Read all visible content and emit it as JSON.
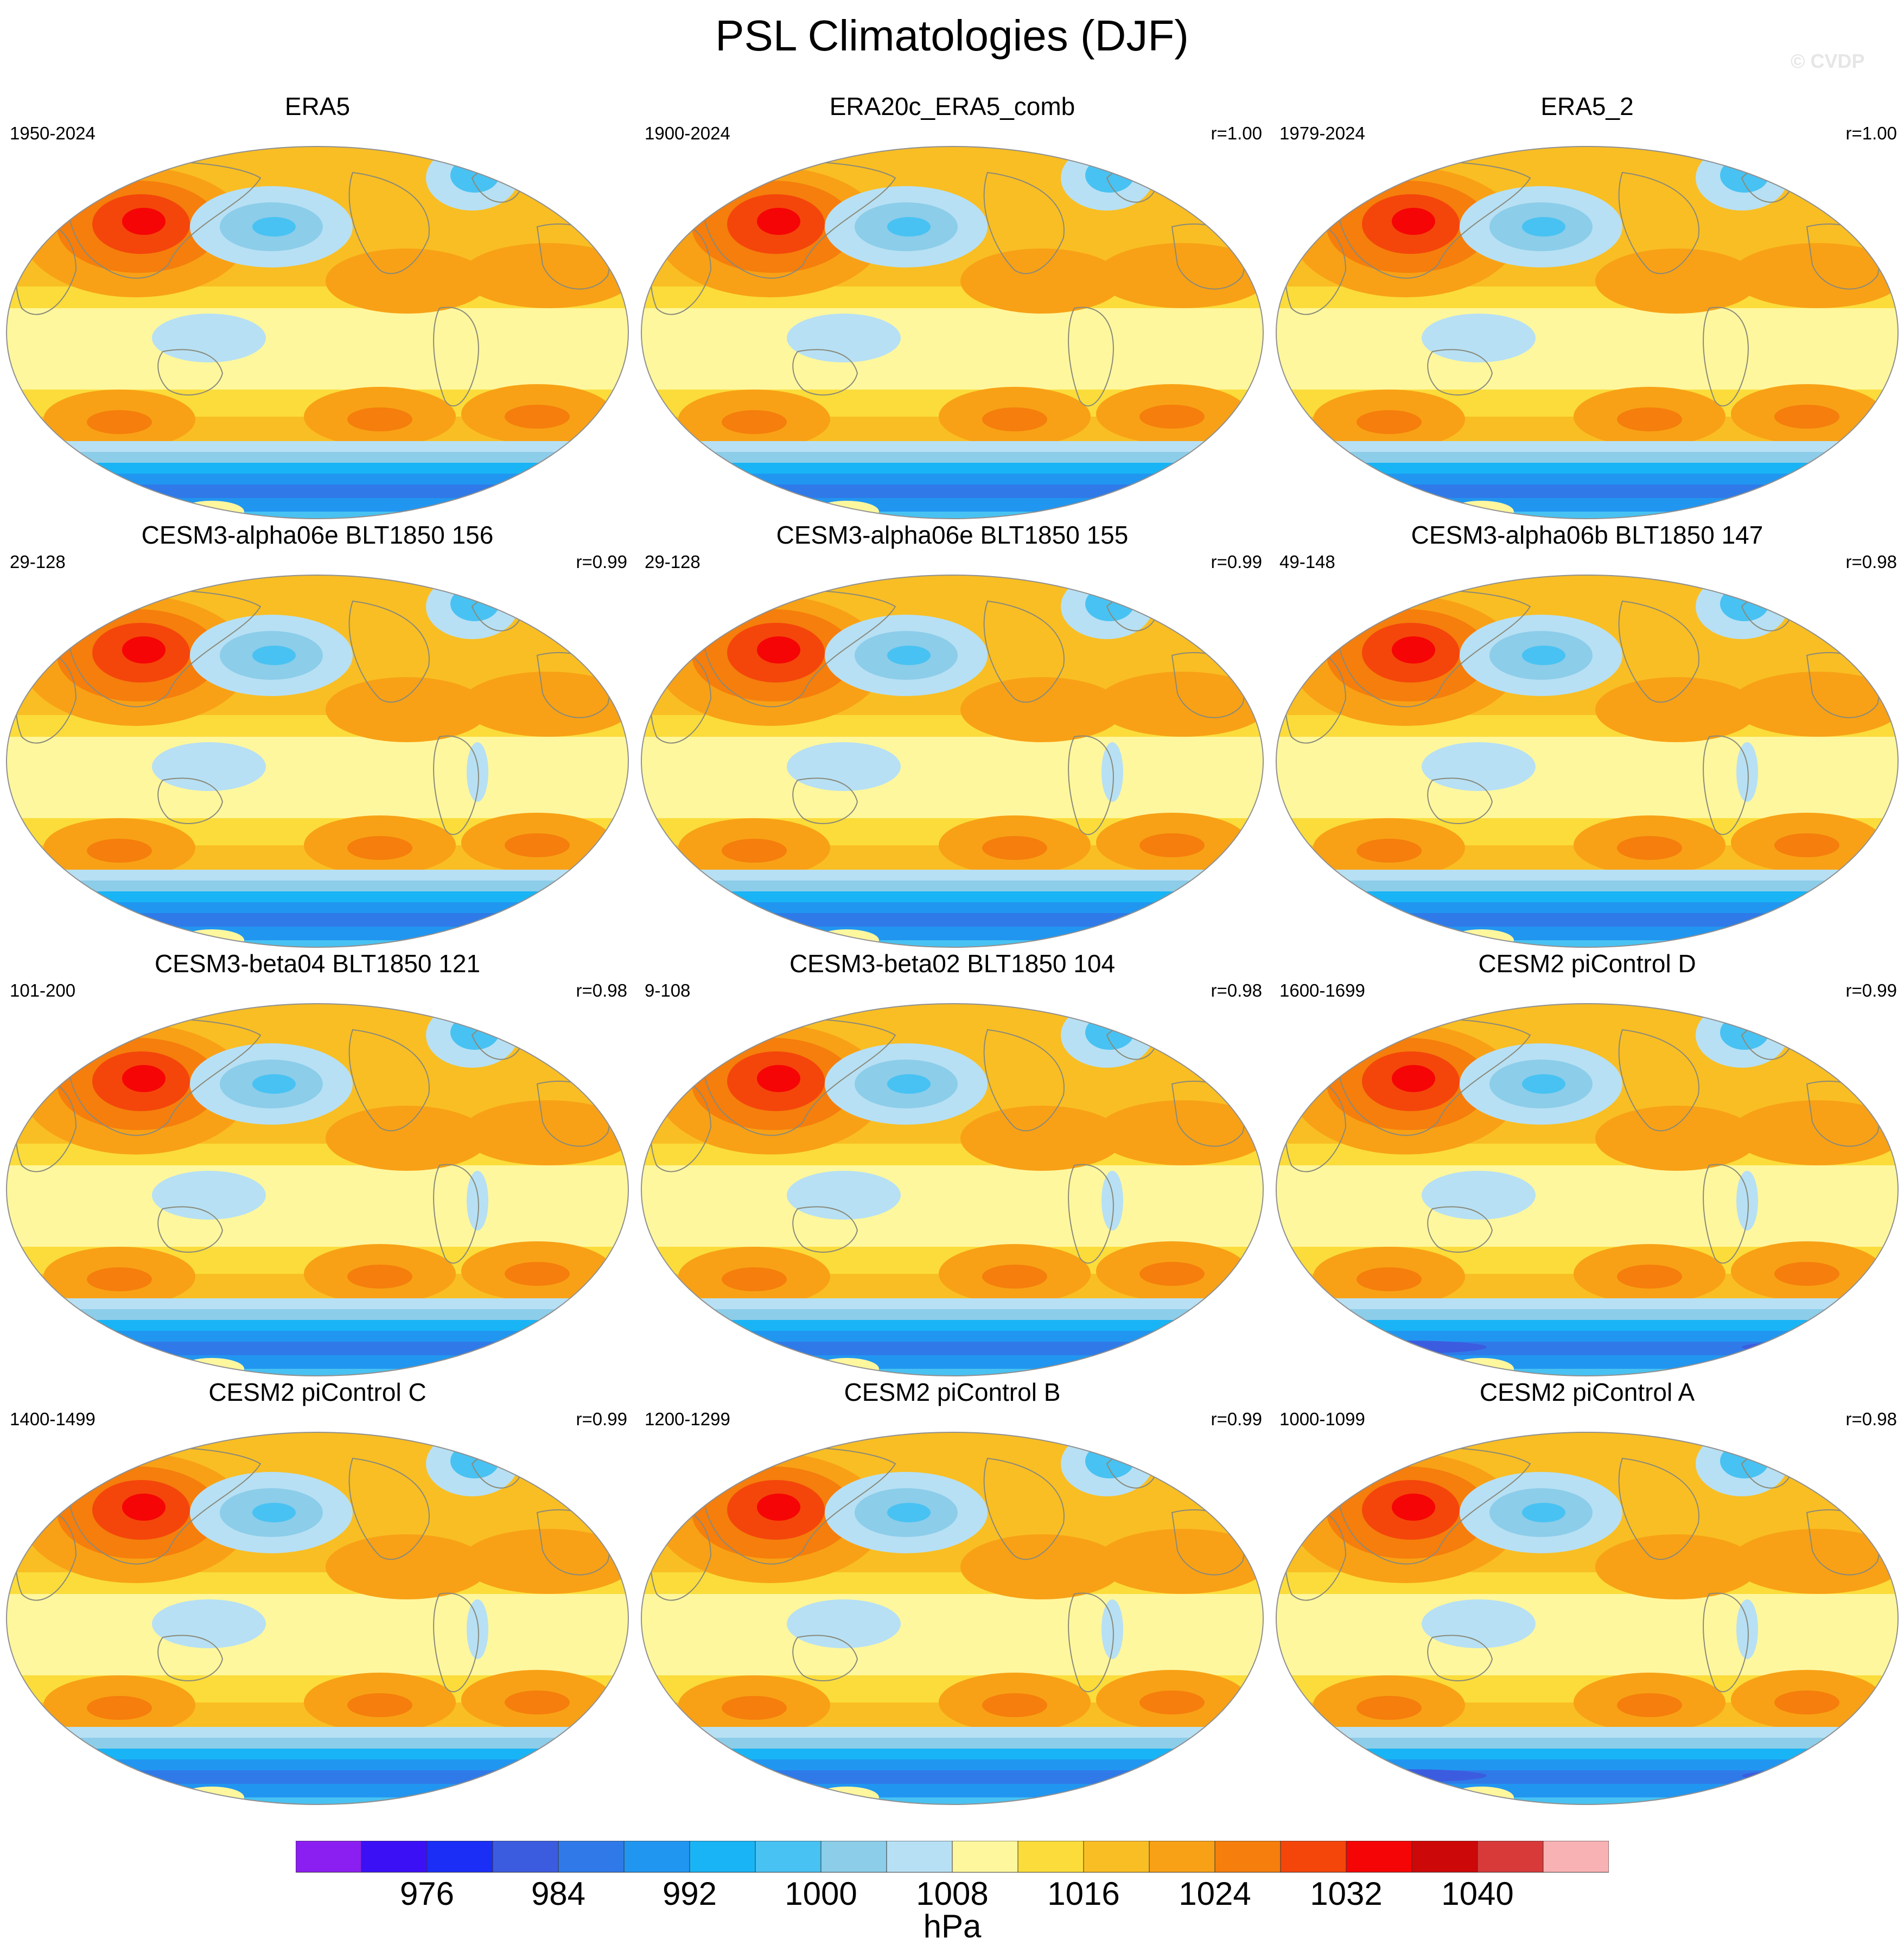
{
  "figure": {
    "title": "PSL Climatologies (DJF)",
    "watermark": "© CVDP"
  },
  "chart_data": {
    "type": "heatmap",
    "variable": "PSL",
    "season": "DJF",
    "projection": "global ellipse (Robinson-like)",
    "units": "hPa",
    "panels": [
      {
        "title": "ERA5",
        "period": "1950-2024",
        "r": ""
      },
      {
        "title": "ERA20c_ERA5_comb",
        "period": "1900-2024",
        "r": "r=1.00"
      },
      {
        "title": "ERA5_2",
        "period": "1979-2024",
        "r": "r=1.00"
      },
      {
        "title": "CESM3-alpha06e BLT1850 156",
        "period": "29-128",
        "r": "r=0.99"
      },
      {
        "title": "CESM3-alpha06e BLT1850 155",
        "period": "29-128",
        "r": "r=0.99"
      },
      {
        "title": "CESM3-alpha06b BLT1850 147",
        "period": "49-148",
        "r": "r=0.98"
      },
      {
        "title": "CESM3-beta04 BLT1850 121",
        "period": "101-200",
        "r": "r=0.98"
      },
      {
        "title": "CESM3-beta02 BLT1850 104",
        "period": "9-108",
        "r": "r=0.98"
      },
      {
        "title": "CESM2 piControl D",
        "period": "1600-1699",
        "r": "r=0.99"
      },
      {
        "title": "CESM2 piControl C",
        "period": "1400-1499",
        "r": "r=0.99"
      },
      {
        "title": "CESM2 piControl B",
        "period": "1200-1299",
        "r": "r=0.99"
      },
      {
        "title": "CESM2 piControl A",
        "period": "1000-1099",
        "r": "r=0.98"
      }
    ],
    "colorbar": {
      "colors": [
        "#8b1ef0",
        "#3b10f5",
        "#1a2ef5",
        "#3c5ce0",
        "#2f7ae8",
        "#2196f0",
        "#19b4f5",
        "#48c2f2",
        "#8ccde9",
        "#b7e0f4",
        "#fff79e",
        "#fbdc3a",
        "#f9be23",
        "#f8a116",
        "#f57e0c",
        "#f4460b",
        "#f50505",
        "#cc0808",
        "#d83a3a",
        "#f9b2b4"
      ],
      "tick_labels": [
        "976",
        "984",
        "992",
        "1000",
        "1008",
        "1016",
        "1024",
        "1032",
        "1040"
      ],
      "tick_values": [
        976,
        984,
        992,
        1000,
        1008,
        1016,
        1024,
        1032,
        1040
      ],
      "label": "hPa"
    }
  }
}
